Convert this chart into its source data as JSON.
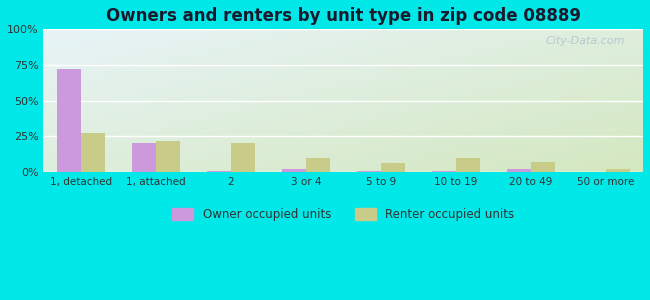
{
  "title": "Owners and renters by unit type in zip code 08889",
  "categories": [
    "1, detached",
    "1, attached",
    "2",
    "3 or 4",
    "5 to 9",
    "10 to 19",
    "20 to 49",
    "50 or more"
  ],
  "owner_values": [
    72,
    20,
    0.5,
    2,
    0.5,
    0.5,
    2,
    0.2
  ],
  "renter_values": [
    27,
    22,
    20,
    10,
    6,
    10,
    7,
    2
  ],
  "owner_color": "#cc99dd",
  "renter_color": "#c8cc88",
  "background_color": "#00e8e8",
  "title_fontsize": 12,
  "title_color": "#1a1a2e",
  "ylim": [
    0,
    100
  ],
  "yticks": [
    0,
    25,
    50,
    75,
    100
  ],
  "ytick_labels": [
    "0%",
    "25%",
    "50%",
    "75%",
    "100%"
  ],
  "watermark": "City-Data.com",
  "legend_owner": "Owner occupied units",
  "legend_renter": "Renter occupied units",
  "bar_width": 0.32,
  "plot_bg_color_tl": "#e8f4f8",
  "plot_bg_color_br": "#d4e8c0"
}
